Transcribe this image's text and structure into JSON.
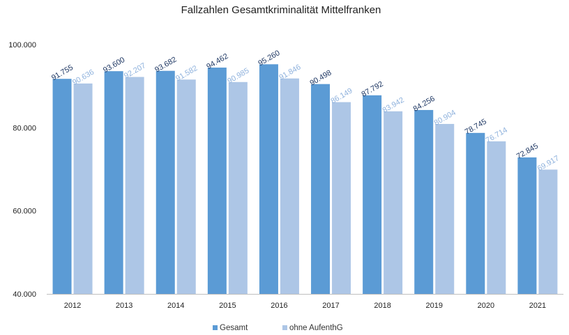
{
  "chart_data": {
    "type": "bar",
    "title": "Fallzahlen Gesamtkriminalität Mittelfranken",
    "xlabel": "",
    "ylabel": "",
    "categories": [
      "2012",
      "2013",
      "2014",
      "2015",
      "2016",
      "2017",
      "2018",
      "2019",
      "2020",
      "2021"
    ],
    "series": [
      {
        "name": "Gesamt",
        "color": "#5b9bd5",
        "label_color": "#1f3864",
        "values": [
          91755,
          93600,
          93682,
          94462,
          95260,
          90498,
          87792,
          84256,
          78745,
          72845
        ],
        "labels": [
          "91.755",
          "93.600",
          "93.682",
          "94.462",
          "95.260",
          "90.498",
          "87.792",
          "84.256",
          "78.745",
          "72.845"
        ]
      },
      {
        "name": "ohne AufenthG",
        "color": "#adc6e6",
        "label_color": "#8fb2dd",
        "values": [
          90636,
          92207,
          91582,
          90985,
          91846,
          86149,
          83942,
          80904,
          76714,
          69917
        ],
        "labels": [
          "90.636",
          "92.207",
          "91.582",
          "90.985",
          "91.846",
          "86.149",
          "83.942",
          "80.904",
          "76.714",
          "69.917"
        ]
      }
    ],
    "ylim": [
      40000,
      100000
    ],
    "yticks": [
      40000,
      60000,
      80000,
      100000
    ],
    "ytick_labels": [
      "40.000",
      "60.000",
      "80.000",
      "100.000"
    ],
    "grid": false,
    "legend": "bottom"
  }
}
